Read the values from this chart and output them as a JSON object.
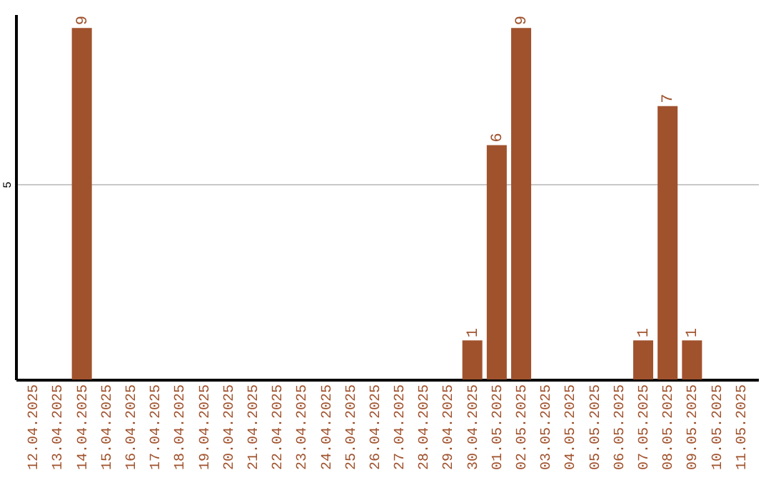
{
  "chart_data": {
    "type": "bar",
    "categories": [
      "12.04.2025",
      "13.04.2025",
      "14.04.2025",
      "15.04.2025",
      "16.04.2025",
      "17.04.2025",
      "18.04.2025",
      "19.04.2025",
      "20.04.2025",
      "21.04.2025",
      "22.04.2025",
      "23.04.2025",
      "24.04.2025",
      "25.04.2025",
      "26.04.2025",
      "27.04.2025",
      "28.04.2025",
      "29.04.2025",
      "30.04.2025",
      "01.05.2025",
      "02.05.2025",
      "03.05.2025",
      "04.05.2025",
      "05.05.2025",
      "06.05.2025",
      "07.05.2025",
      "08.05.2025",
      "09.05.2025",
      "10.05.2025",
      "11.05.2025"
    ],
    "values": [
      0,
      0,
      9,
      0,
      0,
      0,
      0,
      0,
      0,
      0,
      0,
      0,
      0,
      0,
      0,
      0,
      0,
      0,
      1,
      6,
      9,
      0,
      0,
      0,
      0,
      1,
      7,
      1,
      0,
      0
    ],
    "value_labels": [
      null,
      null,
      "9",
      null,
      null,
      null,
      null,
      null,
      null,
      null,
      null,
      null,
      null,
      null,
      null,
      null,
      null,
      null,
      "1",
      "6",
      "9",
      null,
      null,
      null,
      null,
      "1",
      "7",
      "1",
      null,
      null
    ],
    "color": "#a0522d",
    "ylim": [
      0,
      9.35
    ],
    "yticks": [
      5
    ],
    "grid": "y"
  }
}
